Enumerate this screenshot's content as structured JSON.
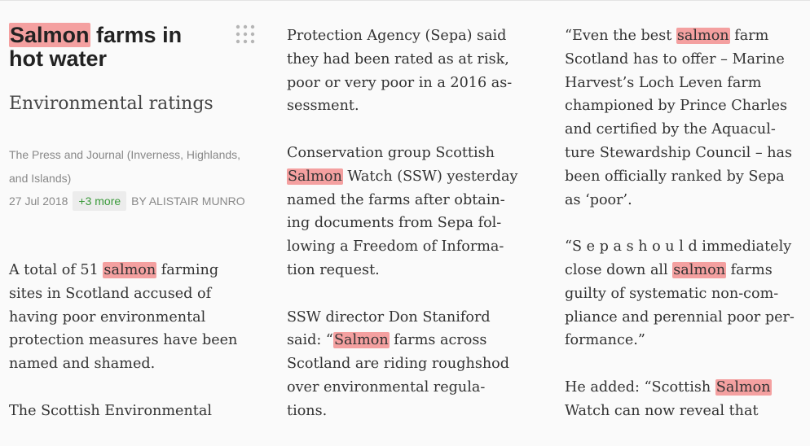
{
  "header": {
    "title": [
      {
        "highlight": "Salmon"
      },
      " farms in hot water"
    ],
    "subtitle": "Environmental ratings",
    "source": "The Press and Journal (Inverness, Highlands, and Islands)",
    "date": "27 Jul 2018",
    "more": "+3 more",
    "byline": "BY ALISTAIR MUNRO"
  },
  "columns": [
    {
      "paragraphs": [
        [
          [
            "A total of 51 ",
            {
              "highlight": "salmon"
            },
            " farming"
          ],
          [
            "sites in Scotland accused of"
          ],
          [
            "having poor environmental"
          ],
          [
            "protection measures have been"
          ],
          [
            "named and shamed."
          ]
        ],
        [
          [
            "The Scottish Environmental"
          ]
        ]
      ]
    },
    {
      "paragraphs": [
        [
          [
            "Protection Agency (Sepa) said"
          ],
          [
            "they had been rated as at risk,"
          ],
          [
            "poor or very poor in a 2016 as-"
          ],
          [
            "sessment."
          ]
        ],
        [
          [
            "Conservation group Scottish"
          ],
          [
            {
              "highlight": "Salmon"
            },
            " Watch (SSW) yesterday"
          ],
          [
            "named the farms after obtain-"
          ],
          [
            "ing documents from Sepa fol-"
          ],
          [
            "lowing a Freedom of Informa-"
          ],
          [
            "tion request."
          ]
        ],
        [
          [
            "SSW director Don Staniford"
          ],
          [
            "said: “",
            {
              "highlight": "Salmon"
            },
            " farms across"
          ],
          [
            "Scotland are riding roughshod"
          ],
          [
            "over environmental regula-"
          ],
          [
            "tions."
          ]
        ]
      ]
    },
    {
      "paragraphs": [
        [
          [
            "“Even the best ",
            {
              "highlight": "salmon"
            },
            " farm"
          ],
          [
            "Scotland has to offer – Marine"
          ],
          [
            "Harvest’s Loch Leven farm"
          ],
          [
            "championed by Prince Charles"
          ],
          [
            "and certified by the Aquacul-"
          ],
          [
            "ture Stewardship Council – has"
          ],
          [
            "been officially ranked by Sepa"
          ],
          [
            "as ‘poor’."
          ]
        ],
        [
          [
            "“S e p a s h o u l d immediately"
          ],
          [
            "close down all ",
            {
              "highlight": "salmon"
            },
            " farms"
          ],
          [
            "guilty of systematic non-com-"
          ],
          [
            "pliance and perennial poor per-"
          ],
          [
            "formance.”"
          ]
        ],
        [
          [
            "He added: “Scottish ",
            {
              "highlight": "Salmon"
            }
          ],
          [
            "Watch can now reveal that"
          ]
        ]
      ]
    }
  ]
}
